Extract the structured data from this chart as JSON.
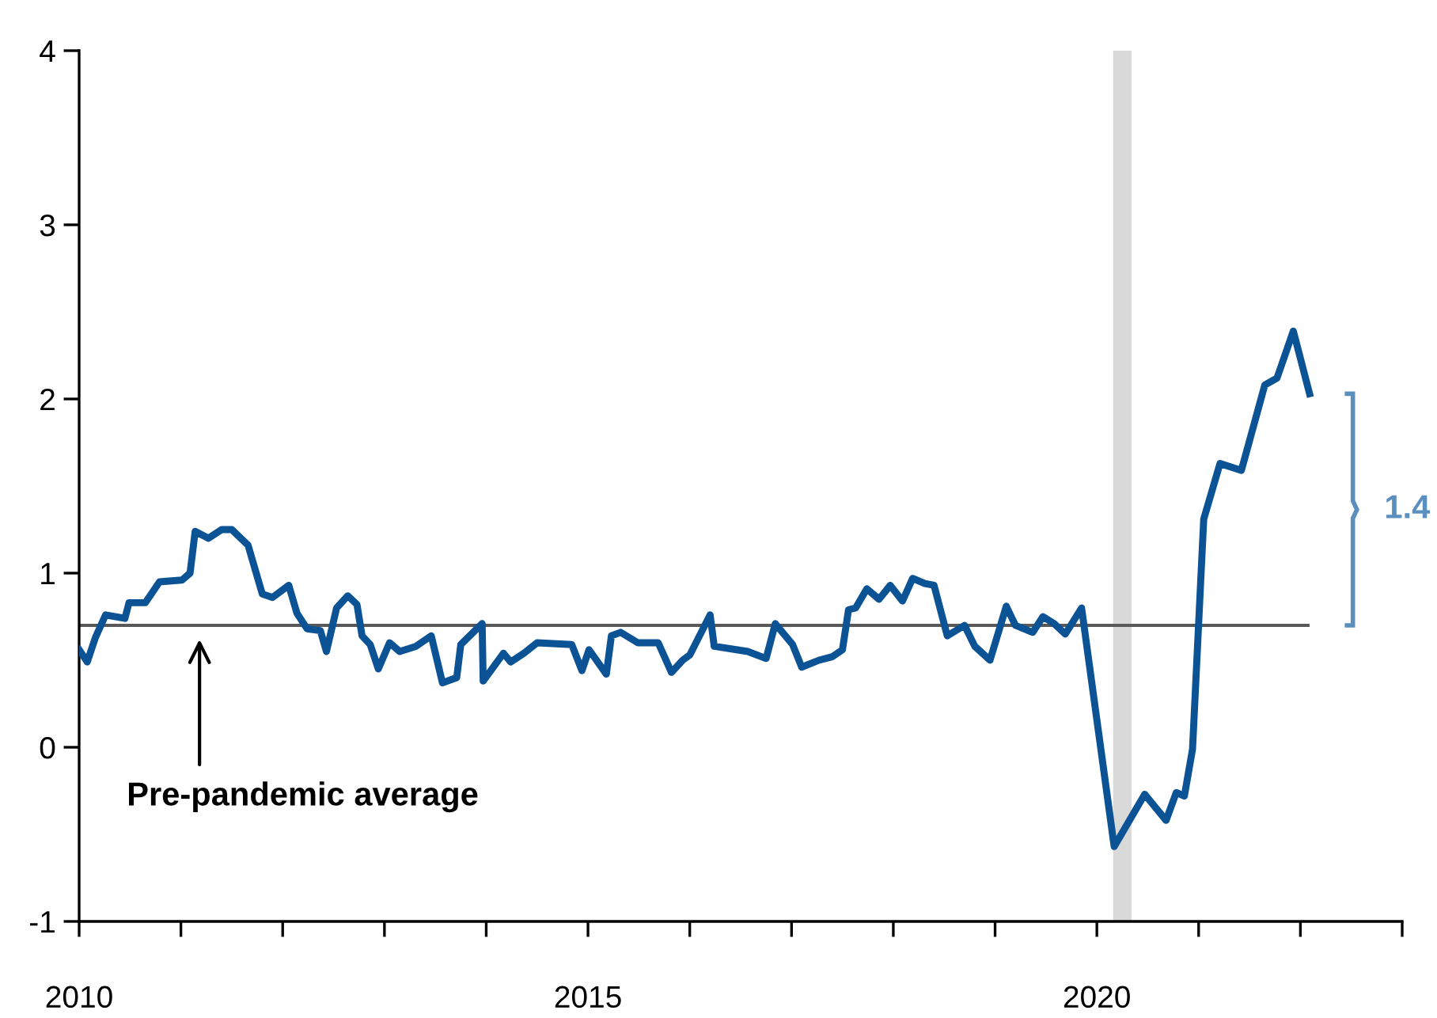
{
  "chart_data": {
    "type": "line",
    "x": [
      2010.0,
      2010.08,
      2010.16,
      2010.26,
      2010.45,
      2010.49,
      2010.65,
      2010.79,
      2011.01,
      2011.09,
      2011.14,
      2011.27,
      2011.4,
      2011.5,
      2011.66,
      2011.8,
      2011.9,
      2012.06,
      2012.14,
      2012.24,
      2012.37,
      2012.43,
      2012.53,
      2012.64,
      2012.73,
      2012.78,
      2012.86,
      2012.94,
      2013.05,
      2013.15,
      2013.31,
      2013.46,
      2013.57,
      2013.71,
      2013.75,
      2013.96,
      2013.97,
      2014.17,
      2014.24,
      2014.37,
      2014.5,
      2014.84,
      2014.94,
      2015.01,
      2015.18,
      2015.23,
      2015.32,
      2015.49,
      2015.69,
      2015.82,
      2015.93,
      2016.0,
      2016.2,
      2016.24,
      2016.57,
      2016.75,
      2016.84,
      2017.01,
      2017.1,
      2017.27,
      2017.4,
      2017.5,
      2017.56,
      2017.63,
      2017.74,
      2017.86,
      2017.97,
      2018.09,
      2018.19,
      2018.31,
      2018.4,
      2018.53,
      2018.7,
      2018.8,
      2018.95,
      2019.11,
      2019.2,
      2019.37,
      2019.47,
      2019.58,
      2019.69,
      2019.85,
      2020.17,
      2020.47,
      2020.68,
      2020.78,
      2020.86,
      2020.94,
      2021.05,
      2021.21,
      2021.42,
      2021.65,
      2021.77,
      2021.93,
      2022.09
    ],
    "series": [
      {
        "color": "#0b5394",
        "values": [
          0.56,
          0.49,
          0.63,
          0.76,
          0.74,
          0.83,
          0.83,
          0.95,
          0.96,
          1.0,
          1.24,
          1.2,
          1.25,
          1.25,
          1.16,
          0.88,
          0.86,
          0.93,
          0.77,
          0.68,
          0.67,
          0.55,
          0.8,
          0.87,
          0.82,
          0.64,
          0.59,
          0.45,
          0.6,
          0.55,
          0.58,
          0.64,
          0.37,
          0.4,
          0.59,
          0.71,
          0.38,
          0.54,
          0.49,
          0.54,
          0.6,
          0.59,
          0.44,
          0.56,
          0.42,
          0.64,
          0.66,
          0.6,
          0.6,
          0.43,
          0.5,
          0.53,
          0.76,
          0.58,
          0.55,
          0.51,
          0.71,
          0.59,
          0.46,
          0.5,
          0.52,
          0.56,
          0.79,
          0.8,
          0.91,
          0.85,
          0.93,
          0.84,
          0.97,
          0.94,
          0.93,
          0.64,
          0.7,
          0.58,
          0.5,
          0.81,
          0.7,
          0.66,
          0.75,
          0.71,
          0.65,
          0.8,
          -0.57,
          -0.27,
          -0.42,
          -0.26,
          -0.28,
          -0.01,
          1.31,
          1.63,
          1.59,
          2.08,
          2.12,
          2.39,
          2.03
        ]
      }
    ],
    "xlim": [
      2010,
      2023
    ],
    "xticks": [
      2010,
      {
        "value": 2011,
        "label": null
      },
      {
        "value": 2012,
        "label": null
      },
      {
        "value": 2013,
        "label": null
      },
      {
        "value": 2014,
        "label": null
      },
      2015,
      {
        "value": 2016,
        "label": null
      },
      {
        "value": 2017,
        "label": null
      },
      {
        "value": 2018,
        "label": null
      },
      {
        "value": 2019,
        "label": null
      },
      2020,
      {
        "value": 2021,
        "label": null
      },
      {
        "value": 2022,
        "label": null
      },
      {
        "value": 2023,
        "label": null
      }
    ],
    "ylim": [
      -1,
      4
    ],
    "yticks": [
      -1,
      0,
      1,
      2,
      3,
      4
    ],
    "ref_lines": [
      {
        "axis": "y",
        "value": 0.7,
        "color": "#595959"
      }
    ],
    "bands": [
      {
        "axis": "x",
        "from": 2020.16,
        "to": 2020.34,
        "color": "#d9d9d9"
      }
    ],
    "annotations": [
      "Pre-pandemic average",
      "1.4"
    ],
    "grid": false
  }
}
